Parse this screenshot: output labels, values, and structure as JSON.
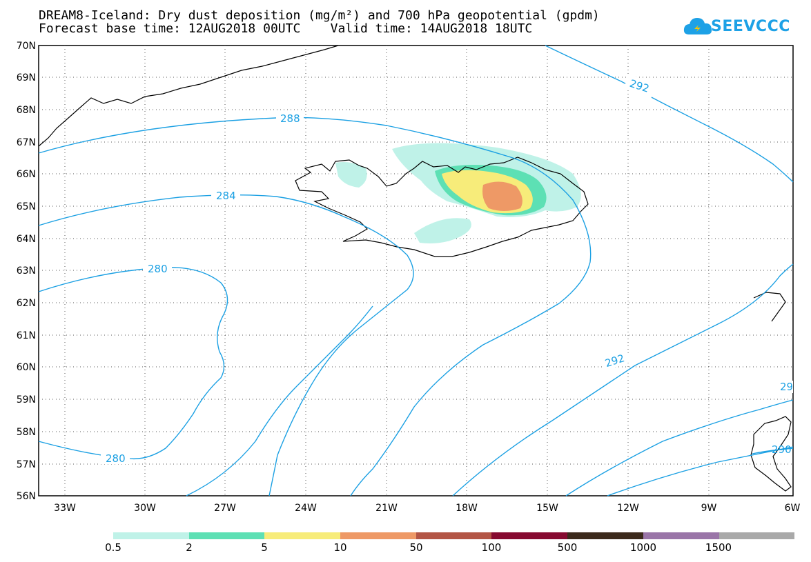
{
  "header": {
    "title_line1": "DREAM8-Iceland: Dry dust deposition (mg/m²) and 700 hPa geopotential (gpdm)",
    "title_line2": "Forecast base time: 12AUG2018 00UTC    Valid time: 14AUG2018 18UTC"
  },
  "logo": {
    "text": "SEEVCCC",
    "icon": "cloud-icon"
  },
  "axes": {
    "lat_labels": [
      "70N",
      "69N",
      "68N",
      "67N",
      "66N",
      "65N",
      "64N",
      "63N",
      "62N",
      "61N",
      "60N",
      "59N",
      "58N",
      "57N",
      "56N"
    ],
    "lon_labels": [
      "33W",
      "30W",
      "27W",
      "24W",
      "21W",
      "18W",
      "15W",
      "12W",
      "9W",
      "6W"
    ]
  },
  "contours": {
    "color": "#1ba0e3",
    "labels": [
      "288",
      "292",
      "284",
      "280",
      "280",
      "292",
      "29",
      "290"
    ]
  },
  "legend": {
    "colors": [
      "#bff2e8",
      "#5de0b4",
      "#f7ec7a",
      "#ee9966",
      "#b35545",
      "#860a30",
      "#3c2a1c",
      "#9a75a8",
      "#a9a9a9"
    ],
    "labels": [
      "0.5",
      "2",
      "5",
      "10",
      "50",
      "100",
      "500",
      "1000",
      "1500"
    ]
  }
}
